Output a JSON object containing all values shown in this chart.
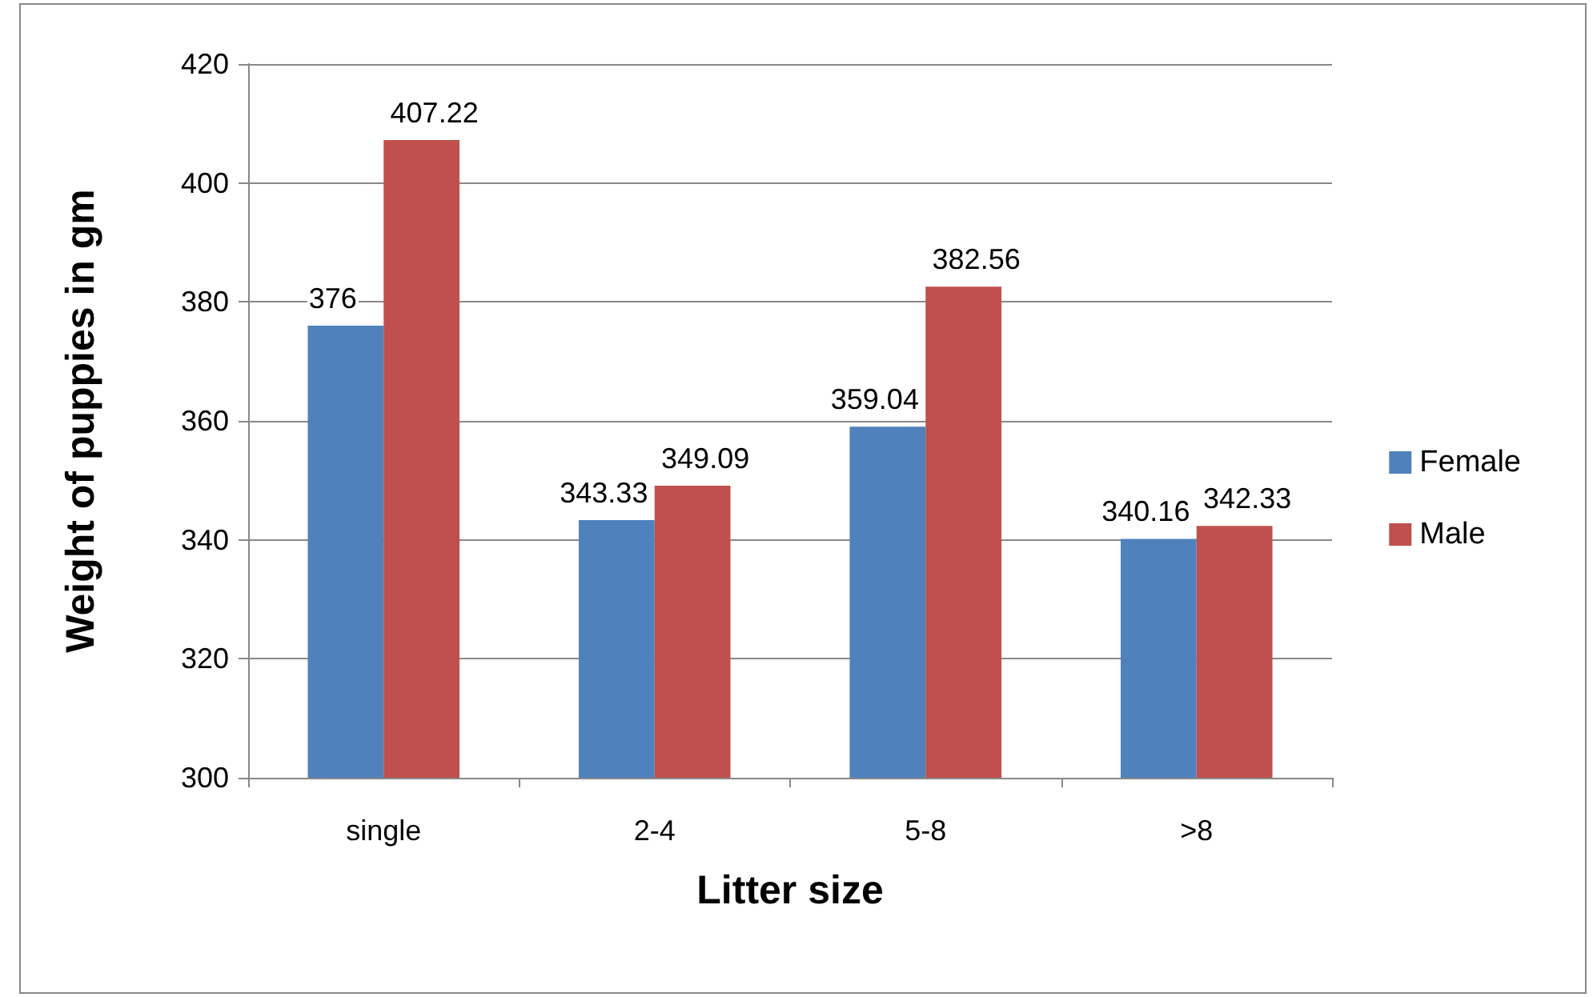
{
  "chart_data": {
    "type": "bar",
    "xlabel": "Litter size",
    "ylabel": "Weight of puppies in gm",
    "categories": [
      "single",
      "2-4",
      "5-8",
      ">8"
    ],
    "series": [
      {
        "name": "Female",
        "color": "#4f81bd",
        "values": [
          376,
          343.33,
          359.04,
          340.16
        ]
      },
      {
        "name": "Male",
        "color": "#c0504d",
        "values": [
          407.22,
          349.09,
          382.56,
          342.33
        ]
      }
    ],
    "ylim": [
      300,
      420
    ],
    "yticks": [
      300,
      320,
      340,
      360,
      380,
      400,
      420
    ],
    "grid": "y",
    "legend": "right",
    "data_labels": true
  }
}
